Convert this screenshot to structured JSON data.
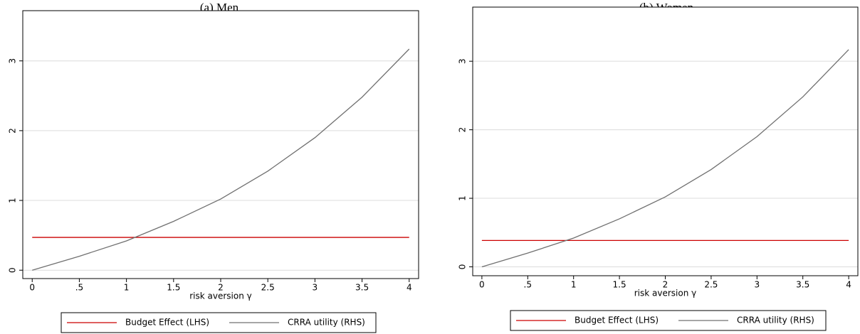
{
  "chart_data": [
    {
      "type": "line",
      "title": "(a) Men",
      "x_label": "risk aversion γ",
      "x": [
        0,
        0.5,
        1,
        1.5,
        2,
        2.5,
        3,
        3.5,
        4
      ],
      "series": [
        {
          "name": "Budget Effect (LHS)",
          "color": "#cc0000",
          "values": [
            0.47,
            0.47,
            0.47,
            0.47,
            0.47,
            0.47,
            0.47,
            0.47,
            0.47
          ]
        },
        {
          "name": "CRRA utility (RHS)",
          "color": "#707070",
          "values": [
            0,
            0.2,
            0.42,
            0.7,
            1.02,
            1.42,
            1.9,
            2.48,
            3.17
          ]
        }
      ],
      "xlim": [
        -0.1,
        4.1
      ],
      "ylim": [
        -0.12,
        3.72
      ],
      "xticks": [
        0,
        {
          "value": 0.5,
          "label": ".5"
        },
        1,
        1.5,
        2,
        2.5,
        3,
        3.5,
        4
      ],
      "yticks": [
        0,
        1,
        2,
        3
      ],
      "grid": true,
      "legend": "bottom"
    },
    {
      "type": "line",
      "title": "(b) Women",
      "x_label": "risk aversion γ",
      "x": [
        0,
        0.5,
        1,
        1.5,
        2,
        2.5,
        3,
        3.5,
        4
      ],
      "series": [
        {
          "name": "Budget Effect (LHS)",
          "color": "#cc0000",
          "values": [
            0.385,
            0.385,
            0.385,
            0.385,
            0.385,
            0.385,
            0.385,
            0.385,
            0.385
          ]
        },
        {
          "name": "CRRA utility (RHS)",
          "color": "#707070",
          "values": [
            0,
            0.2,
            0.42,
            0.7,
            1.02,
            1.42,
            1.9,
            2.48,
            3.17
          ]
        }
      ],
      "xlim": [
        -0.1,
        4.1
      ],
      "ylim": [
        -0.13,
        3.79
      ],
      "xticks": [
        0,
        {
          "value": 0.5,
          "label": ".5"
        },
        1,
        1.5,
        2,
        2.5,
        3,
        3.5,
        4
      ],
      "yticks": [
        0,
        1,
        2,
        3
      ],
      "grid": true,
      "legend": "bottom"
    }
  ]
}
